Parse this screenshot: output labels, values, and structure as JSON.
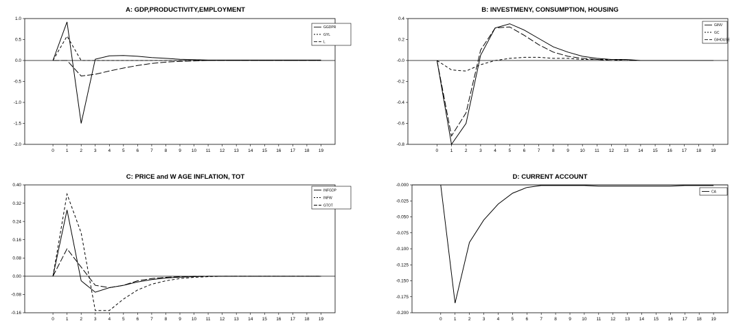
{
  "chart_data": [
    {
      "type": "line",
      "title": "A: GDP,PRODUCTIVITY,EMPLOYMENT",
      "xlabel": "",
      "ylabel": "",
      "x": [
        0,
        1,
        2,
        3,
        4,
        5,
        6,
        7,
        8,
        9,
        10,
        11,
        12,
        13,
        14,
        15,
        16,
        17,
        18,
        19
      ],
      "xticks": [
        0,
        1,
        2,
        3,
        4,
        5,
        6,
        7,
        8,
        9,
        10,
        11,
        12,
        13,
        14,
        15,
        16,
        17,
        18,
        19
      ],
      "ylim": [
        -2.0,
        1.0
      ],
      "yticks": [
        "1.0",
        "0.5",
        "0.0",
        "-0.5",
        "-1.0",
        "-1.5",
        "-2.0"
      ],
      "ytick_values": [
        1.0,
        0.5,
        0.0,
        -0.5,
        -1.0,
        -1.5,
        -2.0
      ],
      "legend_position": "top-right",
      "series": [
        {
          "name": "GGDPR",
          "style": "solid",
          "values": [
            0,
            0.92,
            -1.5,
            0.03,
            0.11,
            0.12,
            0.1,
            0.07,
            0.05,
            0.03,
            0.02,
            0.01,
            0.01,
            0.01,
            0.01,
            0.01,
            0.01,
            0.01,
            0.01,
            0.01
          ]
        },
        {
          "name": "GYL",
          "style": "dash",
          "values": [
            0,
            0.58,
            0.0,
            0.0,
            0.0,
            0.0,
            0.0,
            0.0,
            0.0,
            0.0,
            0.0,
            0.0,
            0.0,
            0.0,
            0.0,
            0.0,
            0.0,
            0.0,
            0.0,
            0.0
          ]
        },
        {
          "name": "L",
          "style": "longdash",
          "values": [
            0,
            0.0,
            -0.37,
            -0.33,
            -0.25,
            -0.18,
            -0.12,
            -0.07,
            -0.04,
            -0.02,
            -0.01,
            0.0,
            0.0,
            0.0,
            0.0,
            0.0,
            0.0,
            0.0,
            0.0,
            0.0
          ]
        }
      ]
    },
    {
      "type": "line",
      "title": "B: INVESTMENY, CONSUMPTION, HOUSING",
      "xlabel": "",
      "ylabel": "",
      "x": [
        0,
        1,
        2,
        3,
        4,
        5,
        6,
        7,
        8,
        9,
        10,
        11,
        12,
        13,
        14,
        15,
        16,
        17,
        18,
        19
      ],
      "xticks": [
        0,
        1,
        2,
        3,
        4,
        5,
        6,
        7,
        8,
        9,
        10,
        11,
        12,
        13,
        14,
        15,
        16,
        17,
        18,
        19
      ],
      "ylim": [
        -0.8,
        0.4
      ],
      "yticks": [
        "0.4",
        "0.2",
        "-0.0",
        "-0.2",
        "-0.4",
        "-0.6",
        "-0.8"
      ],
      "ytick_values": [
        0.4,
        0.2,
        0.0,
        -0.2,
        -0.4,
        -0.6,
        -0.8
      ],
      "legend_position": "top-right",
      "series": [
        {
          "name": "GINV",
          "style": "solid",
          "values": [
            0,
            -0.8,
            -0.6,
            0.05,
            0.31,
            0.35,
            0.29,
            0.21,
            0.13,
            0.08,
            0.04,
            0.02,
            0.01,
            0.01,
            0.0,
            0.0,
            0.0,
            0.0,
            0.0,
            0.0
          ]
        },
        {
          "name": "GC",
          "style": "dash",
          "values": [
            0,
            -0.09,
            -0.1,
            -0.04,
            0.0,
            0.02,
            0.03,
            0.03,
            0.02,
            0.02,
            0.01,
            0.01,
            0.01,
            0.0,
            0.0,
            0.0,
            0.0,
            0.0,
            0.0,
            0.0
          ]
        },
        {
          "name": "GIHOUSE",
          "style": "longdash",
          "values": [
            0,
            -0.72,
            -0.5,
            0.1,
            0.31,
            0.32,
            0.24,
            0.15,
            0.08,
            0.04,
            0.02,
            0.01,
            0.0,
            0.0,
            0.0,
            0.0,
            0.0,
            0.0,
            0.0,
            0.0
          ]
        }
      ]
    },
    {
      "type": "line",
      "title": "C: PRICE and  W AGE INFLATION, TOT",
      "xlabel": "",
      "ylabel": "",
      "x": [
        0,
        1,
        2,
        3,
        4,
        5,
        6,
        7,
        8,
        9,
        10,
        11,
        12,
        13,
        14,
        15,
        16,
        17,
        18,
        19
      ],
      "xticks": [
        0,
        1,
        2,
        3,
        4,
        5,
        6,
        7,
        8,
        9,
        10,
        11,
        12,
        13,
        14,
        15,
        16,
        17,
        18,
        19
      ],
      "ylim": [
        -0.16,
        0.4
      ],
      "yticks": [
        "0.40",
        "0.32",
        "0.24",
        "0.16",
        "0.08",
        "0.00",
        "-0.08",
        "-0.16"
      ],
      "ytick_values": [
        0.4,
        0.32,
        0.24,
        0.16,
        0.08,
        0.0,
        -0.08,
        -0.16
      ],
      "legend_position": "top-right",
      "series": [
        {
          "name": "INFGDP",
          "style": "solid",
          "values": [
            0,
            0.29,
            -0.02,
            -0.07,
            -0.05,
            -0.04,
            -0.025,
            -0.015,
            -0.008,
            -0.004,
            -0.002,
            0,
            0,
            0,
            0,
            0,
            0,
            0,
            0,
            0
          ]
        },
        {
          "name": "INFW",
          "style": "dash",
          "values": [
            0,
            0.36,
            0.19,
            -0.15,
            -0.15,
            -0.1,
            -0.06,
            -0.035,
            -0.02,
            -0.01,
            -0.005,
            -0.002,
            0,
            0,
            0,
            0,
            0,
            0,
            0,
            0
          ]
        },
        {
          "name": "GTOT",
          "style": "longdash",
          "values": [
            0,
            0.12,
            0.04,
            -0.04,
            -0.05,
            -0.04,
            -0.02,
            -0.01,
            -0.005,
            -0.002,
            0,
            0,
            0,
            0,
            0,
            0,
            0,
            0,
            0,
            0
          ]
        }
      ]
    },
    {
      "type": "line",
      "title": "D: CURRENT ACCOUNT",
      "xlabel": "",
      "ylabel": "",
      "x": [
        0,
        1,
        2,
        3,
        4,
        5,
        6,
        7,
        8,
        9,
        10,
        11,
        12,
        13,
        14,
        15,
        16,
        17,
        18,
        19
      ],
      "xticks": [
        0,
        1,
        2,
        3,
        4,
        5,
        6,
        7,
        8,
        9,
        10,
        11,
        12,
        13,
        14,
        15,
        16,
        17,
        18,
        19
      ],
      "ylim": [
        -0.2,
        0.0
      ],
      "yticks": [
        "-0.000",
        "-0.025",
        "-0.050",
        "-0.075",
        "-0.100",
        "-0.125",
        "-0.150",
        "-0.175",
        "-0.200"
      ],
      "ytick_values": [
        0.0,
        -0.025,
        -0.05,
        -0.075,
        -0.1,
        -0.125,
        -0.15,
        -0.175,
        -0.2
      ],
      "legend_position": "top-right",
      "series": [
        {
          "name": "CA",
          "style": "solid",
          "values": [
            0.0,
            -0.185,
            -0.09,
            -0.055,
            -0.03,
            -0.013,
            -0.004,
            -0.001,
            -0.001,
            -0.001,
            -0.001,
            -0.002,
            -0.002,
            -0.002,
            -0.002,
            -0.002,
            -0.002,
            -0.001,
            -0.001,
            -0.001
          ]
        }
      ]
    }
  ]
}
